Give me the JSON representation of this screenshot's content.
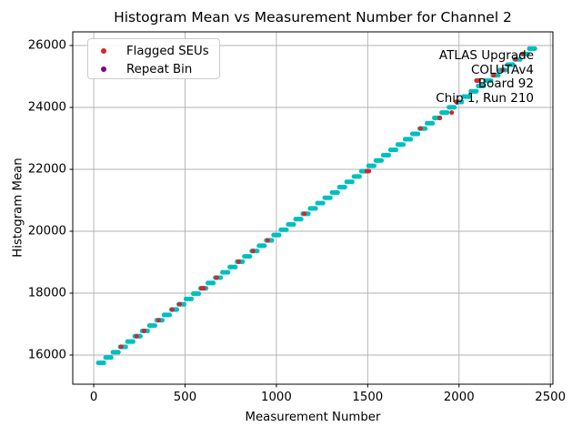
{
  "window": {
    "background": "#ffffff"
  },
  "chart_data": {
    "type": "scatter",
    "title": "Histogram Mean vs Measurement Number for Channel 2",
    "xlabel": "Measurement Number",
    "ylabel": "Histogram Mean",
    "xlim": [
      -115,
      2514
    ],
    "ylim": [
      15059,
      26441
    ],
    "xticks": [
      0,
      500,
      1000,
      1500,
      2000,
      2500
    ],
    "yticks": [
      16000,
      18000,
      20000,
      22000,
      24000,
      26000
    ],
    "grid": true,
    "legend_position": "upper-left",
    "legend": [
      {
        "label": "Flagged SEUs",
        "color": "#d62728"
      },
      {
        "label": "Repeat Bin",
        "color": "#800080"
      }
    ],
    "annotations": [
      "ATLAS Upgrade",
      "COLUTAv4",
      "Board 92",
      "Chip 1, Run 210"
    ],
    "colors": {
      "main": "#00bfbf",
      "flagged": "#d62728",
      "repeat": "#800080",
      "grid": "#b0b0b0",
      "spine": "#000000"
    },
    "series": [
      {
        "name": "histogram-mean",
        "marker_offsets": [
          0,
          10,
          20,
          30
        ],
        "steps": [
          [
            25,
            15750
          ],
          [
            65,
            15922
          ],
          [
            105,
            16094
          ],
          [
            145,
            16266
          ],
          [
            185,
            16438
          ],
          [
            225,
            16610
          ],
          [
            265,
            16782
          ],
          [
            305,
            16954
          ],
          [
            345,
            17126
          ],
          [
            385,
            17298
          ],
          [
            425,
            17470
          ],
          [
            465,
            17642
          ],
          [
            505,
            17814
          ],
          [
            545,
            17986
          ],
          [
            585,
            18158
          ],
          [
            625,
            18330
          ],
          [
            665,
            18502
          ],
          [
            705,
            18674
          ],
          [
            745,
            18846
          ],
          [
            785,
            19018
          ],
          [
            825,
            19190
          ],
          [
            865,
            19362
          ],
          [
            905,
            19534
          ],
          [
            945,
            19706
          ],
          [
            985,
            19878
          ],
          [
            1025,
            20050
          ],
          [
            1065,
            20222
          ],
          [
            1105,
            20394
          ],
          [
            1145,
            20566
          ],
          [
            1185,
            20738
          ],
          [
            1225,
            20910
          ],
          [
            1265,
            21082
          ],
          [
            1305,
            21254
          ],
          [
            1345,
            21426
          ],
          [
            1385,
            21598
          ],
          [
            1425,
            21770
          ],
          [
            1465,
            21942
          ],
          [
            1505,
            22114
          ],
          [
            1545,
            22286
          ],
          [
            1585,
            22458
          ],
          [
            1625,
            22630
          ],
          [
            1665,
            22802
          ],
          [
            1705,
            22974
          ],
          [
            1745,
            23146
          ],
          [
            1785,
            23318
          ],
          [
            1825,
            23490
          ],
          [
            1865,
            23662
          ],
          [
            1905,
            23834
          ],
          [
            1945,
            24006
          ],
          [
            1985,
            24178
          ],
          [
            2025,
            24350
          ],
          [
            2065,
            24522
          ],
          [
            2105,
            24694
          ],
          [
            2145,
            24866
          ],
          [
            2185,
            25038
          ],
          [
            2225,
            25210
          ],
          [
            2265,
            25382
          ],
          [
            2305,
            25554
          ],
          [
            2345,
            25726
          ],
          [
            2385,
            25898
          ]
        ]
      },
      {
        "name": "repeat-bin",
        "points": [
          [
            150,
            16266
          ],
          [
            235,
            16610
          ],
          [
            275,
            16782
          ],
          [
            355,
            17126
          ],
          [
            430,
            17470
          ],
          [
            470,
            17642
          ],
          [
            590,
            18158
          ],
          [
            602,
            18158
          ],
          [
            672,
            18502
          ],
          [
            793,
            19018
          ],
          [
            872,
            19362
          ],
          [
            952,
            19706
          ],
          [
            1153,
            20566
          ],
          [
            1495,
            21942
          ],
          [
            1507,
            21942
          ],
          [
            1790,
            23318
          ],
          [
            1895,
            23662
          ],
          [
            1960,
            23834
          ],
          [
            1985,
            24178
          ],
          [
            2095,
            24866
          ],
          [
            2107,
            24866
          ],
          [
            2190,
            25038
          ],
          [
            2240,
            25210
          ],
          [
            2310,
            25554
          ],
          [
            2350,
            25726
          ]
        ]
      },
      {
        "name": "flagged-seus",
        "points": [
          [
            150,
            16266
          ],
          [
            235,
            16610
          ],
          [
            275,
            16782
          ],
          [
            355,
            17126
          ],
          [
            430,
            17470
          ],
          [
            470,
            17642
          ],
          [
            590,
            18158
          ],
          [
            602,
            18158
          ],
          [
            672,
            18502
          ],
          [
            793,
            19018
          ],
          [
            872,
            19362
          ],
          [
            952,
            19706
          ],
          [
            1153,
            20566
          ],
          [
            1495,
            21942
          ],
          [
            1507,
            21942
          ],
          [
            1790,
            23318
          ],
          [
            1895,
            23662
          ],
          [
            1960,
            23834
          ],
          [
            1985,
            24178
          ],
          [
            2095,
            24866
          ],
          [
            2107,
            24866
          ],
          [
            2190,
            25038
          ],
          [
            2240,
            25210
          ],
          [
            2310,
            25554
          ],
          [
            2350,
            25726
          ]
        ]
      }
    ]
  }
}
